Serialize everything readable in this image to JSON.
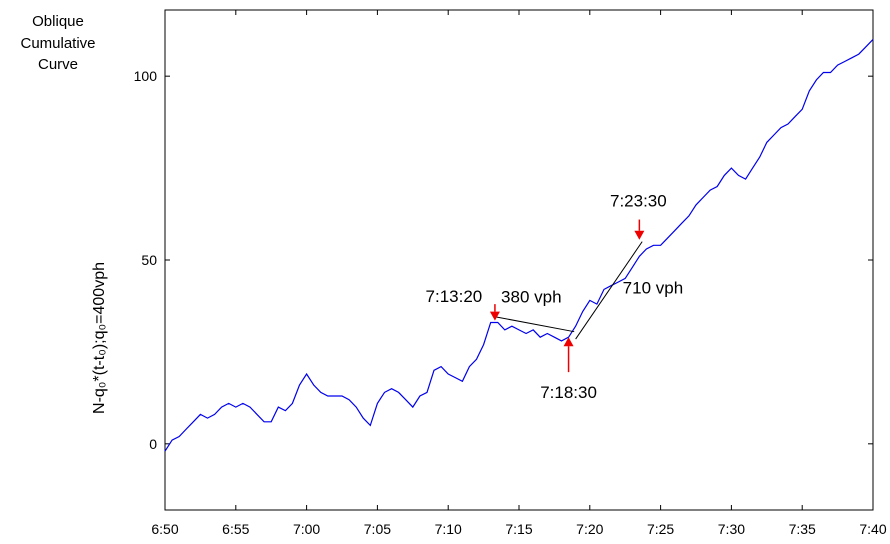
{
  "chart_data": {
    "type": "line",
    "title_lines": [
      "Oblique",
      "Cumulative",
      "Curve"
    ],
    "ylabel": "N-q₀*(t-t₀);q₀=400vph",
    "xlabel": "",
    "xlim": [
      0,
      50
    ],
    "ylim": [
      -18,
      118
    ],
    "x_ticks": [
      {
        "value": 0,
        "label": "6:50"
      },
      {
        "value": 5,
        "label": "6:55"
      },
      {
        "value": 10,
        "label": "7:00"
      },
      {
        "value": 15,
        "label": "7:05"
      },
      {
        "value": 20,
        "label": "7:10"
      },
      {
        "value": 25,
        "label": "7:15"
      },
      {
        "value": 30,
        "label": "7:20"
      },
      {
        "value": 35,
        "label": "7:25"
      },
      {
        "value": 40,
        "label": "7:30"
      },
      {
        "value": 45,
        "label": "7:35"
      },
      {
        "value": 50,
        "label": "7:40"
      }
    ],
    "y_ticks": [
      {
        "value": 0,
        "label": "0"
      },
      {
        "value": 50,
        "label": "50"
      },
      {
        "value": 100,
        "label": "100"
      }
    ],
    "grid": false,
    "series": [
      {
        "color": "#0000ee",
        "points": [
          [
            0,
            -2
          ],
          [
            0.5,
            1
          ],
          [
            1,
            2
          ],
          [
            1.5,
            4
          ],
          [
            2,
            6
          ],
          [
            2.5,
            8
          ],
          [
            3,
            7
          ],
          [
            3.5,
            8
          ],
          [
            4,
            10
          ],
          [
            4.5,
            11
          ],
          [
            5,
            10
          ],
          [
            5.5,
            11
          ],
          [
            6,
            10
          ],
          [
            6.5,
            8
          ],
          [
            7,
            6
          ],
          [
            7.5,
            6
          ],
          [
            8,
            10
          ],
          [
            8.5,
            9
          ],
          [
            9,
            11
          ],
          [
            9.5,
            16
          ],
          [
            10,
            19
          ],
          [
            10.5,
            16
          ],
          [
            11,
            14
          ],
          [
            11.5,
            13
          ],
          [
            12,
            13
          ],
          [
            12.5,
            13
          ],
          [
            13,
            12
          ],
          [
            13.5,
            10
          ],
          [
            14,
            7
          ],
          [
            14.5,
            5
          ],
          [
            15,
            11
          ],
          [
            15.5,
            14
          ],
          [
            16,
            15
          ],
          [
            16.5,
            14
          ],
          [
            17,
            12
          ],
          [
            17.5,
            10
          ],
          [
            18,
            13
          ],
          [
            18.5,
            14
          ],
          [
            19,
            20
          ],
          [
            19.5,
            21
          ],
          [
            20,
            19
          ],
          [
            20.5,
            18
          ],
          [
            21,
            17
          ],
          [
            21.5,
            21
          ],
          [
            22,
            23
          ],
          [
            22.5,
            27
          ],
          [
            23,
            33
          ],
          [
            23.5,
            33
          ],
          [
            24,
            31
          ],
          [
            24.5,
            32
          ],
          [
            25,
            31
          ],
          [
            25.5,
            30
          ],
          [
            26,
            31
          ],
          [
            26.5,
            29
          ],
          [
            27,
            30
          ],
          [
            27.5,
            29
          ],
          [
            28,
            28
          ],
          [
            28.5,
            29
          ],
          [
            29,
            32
          ],
          [
            29.5,
            36
          ],
          [
            30,
            39
          ],
          [
            30.5,
            38
          ],
          [
            31,
            42
          ],
          [
            31.5,
            43
          ],
          [
            32,
            44
          ],
          [
            32.5,
            45
          ],
          [
            33,
            48
          ],
          [
            33.5,
            51
          ],
          [
            34,
            53
          ],
          [
            34.5,
            54
          ],
          [
            35,
            54
          ],
          [
            35.5,
            56
          ],
          [
            36,
            58
          ],
          [
            36.5,
            60
          ],
          [
            37,
            62
          ],
          [
            37.5,
            65
          ],
          [
            38,
            67
          ],
          [
            38.5,
            69
          ],
          [
            39,
            70
          ],
          [
            39.5,
            73
          ],
          [
            40,
            75
          ],
          [
            40.5,
            73
          ],
          [
            41,
            72
          ],
          [
            41.5,
            75
          ],
          [
            42,
            78
          ],
          [
            42.5,
            82
          ],
          [
            43,
            84
          ],
          [
            43.5,
            86
          ],
          [
            44,
            87
          ],
          [
            44.5,
            89
          ],
          [
            45,
            91
          ],
          [
            45.5,
            96
          ],
          [
            46,
            99
          ],
          [
            46.5,
            101
          ],
          [
            47,
            101
          ],
          [
            47.5,
            103
          ],
          [
            48,
            104
          ],
          [
            48.5,
            105
          ],
          [
            49,
            106
          ],
          [
            49.5,
            108
          ],
          [
            50,
            110
          ]
        ]
      }
    ],
    "fit_lines": [
      {
        "x1": 23.4,
        "y1": 34.5,
        "x2": 28.9,
        "y2": 30.5,
        "label": "380 vph"
      },
      {
        "x1": 29.0,
        "y1": 28.5,
        "x2": 33.7,
        "y2": 55.0,
        "label": "710 vph"
      }
    ],
    "arrows": [
      {
        "x": 23.3,
        "value_top": 38,
        "value_tip": 33.5,
        "direction": "down",
        "label": "7:13:20"
      },
      {
        "x": 28.5,
        "value_top": 19.5,
        "value_tip": 29,
        "direction": "up",
        "label": "7:18:30"
      },
      {
        "x": 33.5,
        "value_top": 61,
        "value_tip": 55.5,
        "direction": "down",
        "label": "7:23:30"
      }
    ],
    "arrow_color": "#ee0000"
  }
}
